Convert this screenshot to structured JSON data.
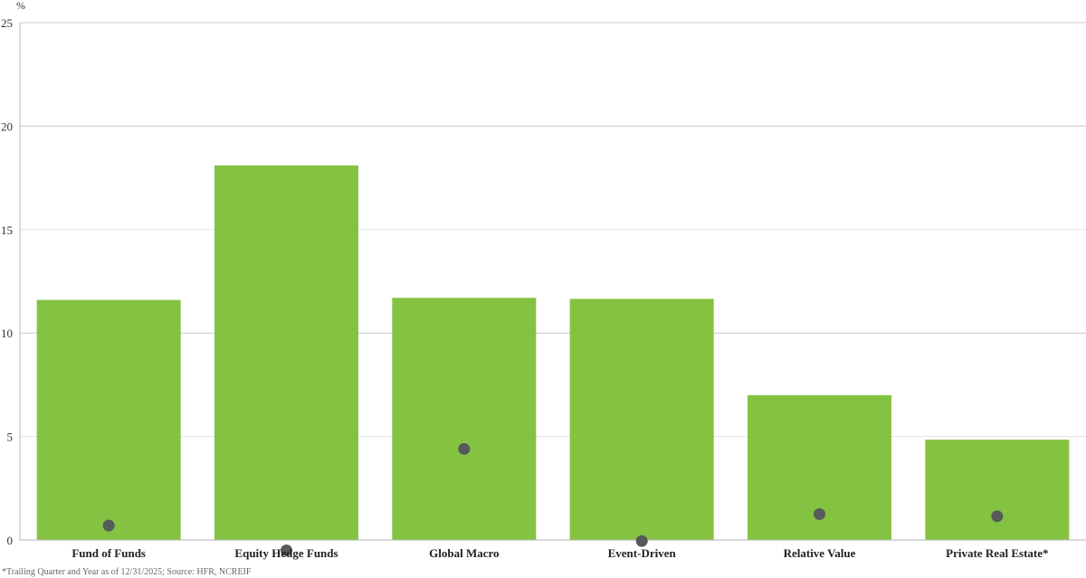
{
  "chart_data": {
    "type": "bar",
    "ylabel": "%",
    "ylim": [
      0,
      25
    ],
    "yticks": [
      "0",
      "5",
      "10",
      "15",
      "20",
      "25"
    ],
    "grid": true,
    "categories": [
      "Fund of Funds",
      "Equity Hedge Funds",
      "Global Macro",
      "Event-Driven",
      "Relative Value",
      "Private Real Estate*"
    ],
    "series": [
      {
        "type": "bar",
        "values": [
          11.6,
          18.1,
          11.7,
          11.65,
          7.0,
          4.85
        ]
      },
      {
        "type": "scatter",
        "values": [
          0.7,
          -0.5,
          4.4,
          -0.05,
          1.25,
          1.15
        ]
      }
    ],
    "colors": {
      "bar": "#84c341",
      "dot": "#58595b",
      "grid": "#e3e3e3",
      "axis": "#b5b5b5"
    },
    "note": "*Trailing Quarter and Year as of 12/31/2025; Source: HFR, NCREIF"
  }
}
